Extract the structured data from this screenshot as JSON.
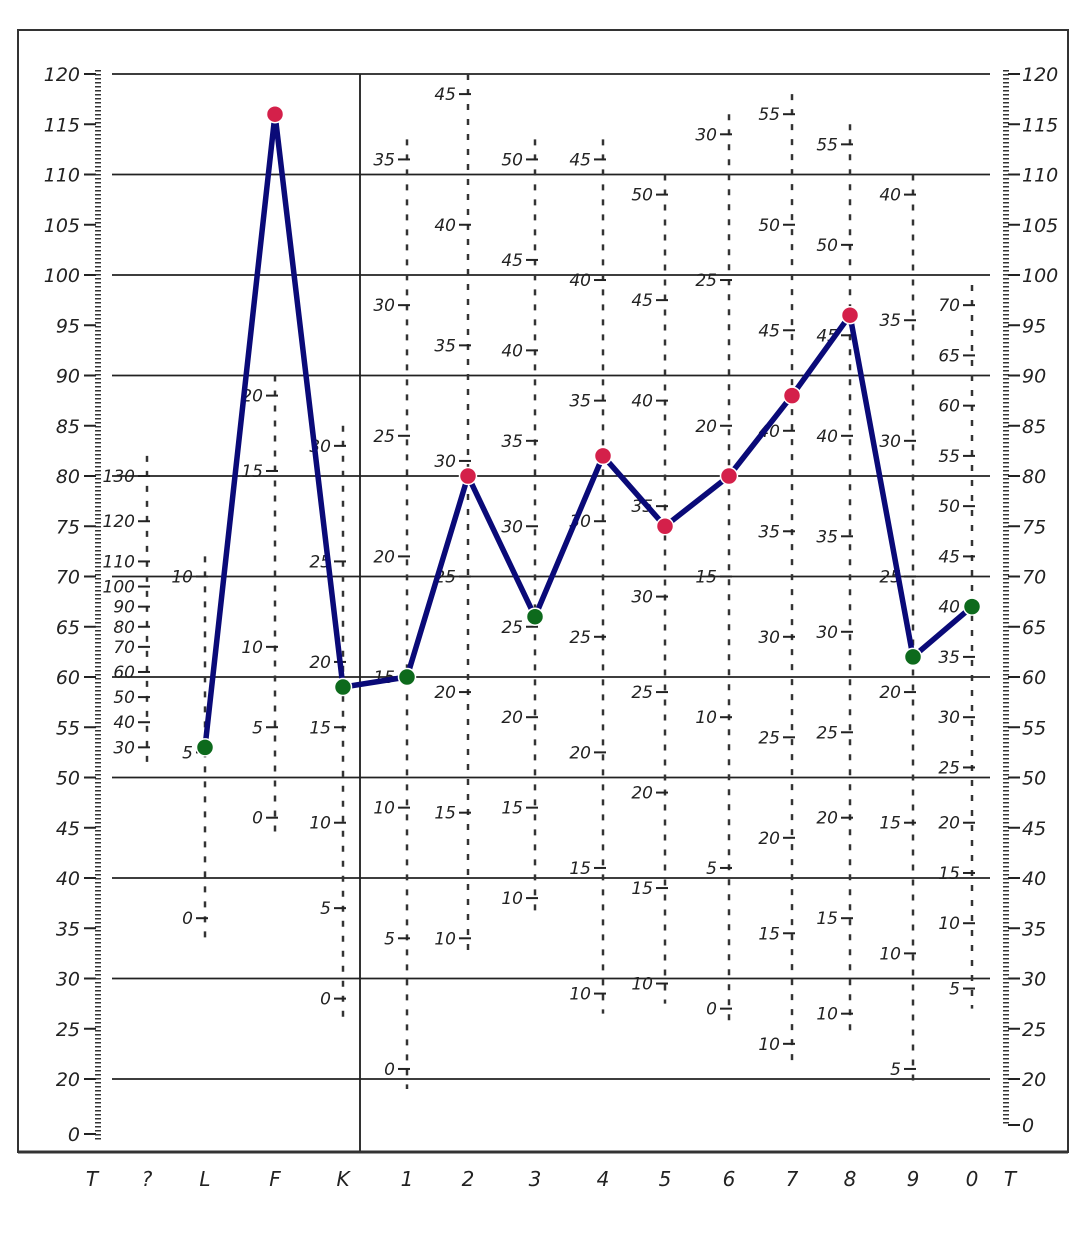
{
  "chart_data": {
    "type": "line",
    "title": "",
    "xlabel": "",
    "ylabel": "",
    "categories": [
      "T",
      "?",
      "L",
      "F",
      "K",
      "1",
      "2",
      "3",
      "4",
      "5",
      "6",
      "7",
      "8",
      "9",
      "0",
      "T"
    ],
    "y_axis": {
      "ylim": [
        0,
        120
      ],
      "left_ticks": [
        "120",
        "115",
        "110",
        "105",
        "100",
        "95",
        "90",
        "85",
        "80",
        "75",
        "70",
        "65",
        "60",
        "55",
        "50",
        "45",
        "40",
        "35",
        "30",
        "25",
        "20",
        "0"
      ],
      "right_ticks": [
        "120",
        "115",
        "110",
        "105",
        "100",
        "95",
        "90",
        "85",
        "80",
        "75",
        "70",
        "65",
        "60",
        "55",
        "50",
        "45",
        "40",
        "35",
        "30",
        "25",
        "20",
        "0"
      ]
    },
    "grid": true,
    "series": [
      {
        "color": "#0a0a78",
        "points": [
          {
            "category": "L",
            "t": 53,
            "marker": "green"
          },
          {
            "category": "F",
            "t": 116,
            "marker": "red"
          },
          {
            "category": "K",
            "t": 59,
            "marker": "green"
          },
          {
            "category": "1",
            "t": 60,
            "marker": "green"
          },
          {
            "category": "2",
            "t": 80,
            "marker": "red"
          },
          {
            "category": "3",
            "t": 66,
            "marker": "green"
          },
          {
            "category": "4",
            "t": 82,
            "marker": "red"
          },
          {
            "category": "5",
            "t": 75,
            "marker": "red"
          },
          {
            "category": "6",
            "t": 80,
            "marker": "red"
          },
          {
            "category": "7",
            "t": 88,
            "marker": "red"
          },
          {
            "category": "8",
            "t": 96,
            "marker": "red"
          },
          {
            "category": "9",
            "t": 62,
            "marker": "green"
          },
          {
            "category": "0",
            "t": 67,
            "marker": "green"
          }
        ]
      }
    ],
    "raw_scales": [
      {
        "column": "?",
        "labels": [
          {
            "text": "130",
            "t": 80
          },
          {
            "text": "120",
            "t": 75.5
          },
          {
            "text": "110",
            "t": 71.5
          },
          {
            "text": "100",
            "t": 69
          },
          {
            "text": "90",
            "t": 67
          },
          {
            "text": "80",
            "t": 65
          },
          {
            "text": "70",
            "t": 63
          },
          {
            "text": "60",
            "t": 60.5
          },
          {
            "text": "50",
            "t": 58
          },
          {
            "text": "40",
            "t": 55.5
          },
          {
            "text": "30",
            "t": 53
          }
        ]
      },
      {
        "column": "L",
        "labels": [
          {
            "text": "10",
            "t": 70
          },
          {
            "text": "5",
            "t": 52.5
          },
          {
            "text": "0",
            "t": 36
          }
        ]
      },
      {
        "column": "F",
        "labels": [
          {
            "text": "20",
            "t": 88
          },
          {
            "text": "15",
            "t": 80.5
          },
          {
            "text": "10",
            "t": 63
          },
          {
            "text": "5",
            "t": 55
          },
          {
            "text": "0",
            "t": 46
          }
        ]
      },
      {
        "column": "K",
        "labels": [
          {
            "text": "30",
            "t": 83
          },
          {
            "text": "25",
            "t": 71.5
          },
          {
            "text": "20",
            "t": 61.5
          },
          {
            "text": "15",
            "t": 55
          },
          {
            "text": "10",
            "t": 45.5
          },
          {
            "text": "5",
            "t": 37
          },
          {
            "text": "0",
            "t": 28
          }
        ]
      },
      {
        "column": "1",
        "labels": [
          {
            "text": "35",
            "t": 111.5
          },
          {
            "text": "30",
            "t": 97
          },
          {
            "text": "25",
            "t": 84
          },
          {
            "text": "20",
            "t": 72
          },
          {
            "text": "15",
            "t": 60
          },
          {
            "text": "10",
            "t": 47
          },
          {
            "text": "5",
            "t": 34
          },
          {
            "text": "0",
            "t": 21
          }
        ]
      },
      {
        "column": "2",
        "labels": [
          {
            "text": "45",
            "t": 118
          },
          {
            "text": "40",
            "t": 105
          },
          {
            "text": "35",
            "t": 93
          },
          {
            "text": "30",
            "t": 81.5
          },
          {
            "text": "25",
            "t": 70
          },
          {
            "text": "20",
            "t": 58.5
          },
          {
            "text": "15",
            "t": 46.5
          },
          {
            "text": "10",
            "t": 34
          }
        ]
      },
      {
        "column": "3",
        "labels": [
          {
            "text": "50",
            "t": 111.5
          },
          {
            "text": "45",
            "t": 101.5
          },
          {
            "text": "40",
            "t": 92.5
          },
          {
            "text": "35",
            "t": 83.5
          },
          {
            "text": "30",
            "t": 75
          },
          {
            "text": "25",
            "t": 65
          },
          {
            "text": "20",
            "t": 56
          },
          {
            "text": "15",
            "t": 47
          },
          {
            "text": "10",
            "t": 38
          }
        ]
      },
      {
        "column": "4",
        "labels": [
          {
            "text": "45",
            "t": 111.5
          },
          {
            "text": "40",
            "t": 99.5
          },
          {
            "text": "35",
            "t": 87.5
          },
          {
            "text": "30",
            "t": 75.5
          },
          {
            "text": "25",
            "t": 64
          },
          {
            "text": "20",
            "t": 52.5
          },
          {
            "text": "15",
            "t": 41
          },
          {
            "text": "10",
            "t": 28.5
          }
        ]
      },
      {
        "column": "5",
        "labels": [
          {
            "text": "50",
            "t": 108
          },
          {
            "text": "45",
            "t": 97.5
          },
          {
            "text": "40",
            "t": 87.5
          },
          {
            "text": "35",
            "t": 77
          },
          {
            "text": "30",
            "t": 68
          },
          {
            "text": "25",
            "t": 58.5
          },
          {
            "text": "20",
            "t": 48.5
          },
          {
            "text": "15",
            "t": 39
          },
          {
            "text": "10",
            "t": 29.5
          }
        ]
      },
      {
        "column": "6",
        "labels": [
          {
            "text": "30",
            "t": 114
          },
          {
            "text": "25",
            "t": 99.5
          },
          {
            "text": "20",
            "t": 85
          },
          {
            "text": "15",
            "t": 70
          },
          {
            "text": "10",
            "t": 56
          },
          {
            "text": "5",
            "t": 41
          },
          {
            "text": "0",
            "t": 27
          }
        ]
      },
      {
        "column": "7",
        "labels": [
          {
            "text": "55",
            "t": 116
          },
          {
            "text": "50",
            "t": 105
          },
          {
            "text": "45",
            "t": 94.5
          },
          {
            "text": "40",
            "t": 84.5
          },
          {
            "text": "35",
            "t": 74.5
          },
          {
            "text": "30",
            "t": 64
          },
          {
            "text": "25",
            "t": 54
          },
          {
            "text": "20",
            "t": 44
          },
          {
            "text": "15",
            "t": 34.5
          },
          {
            "text": "10",
            "t": 23.5
          }
        ]
      },
      {
        "column": "8",
        "labels": [
          {
            "text": "55",
            "t": 113
          },
          {
            "text": "50",
            "t": 103
          },
          {
            "text": "45",
            "t": 94
          },
          {
            "text": "40",
            "t": 84
          },
          {
            "text": "35",
            "t": 74
          },
          {
            "text": "30",
            "t": 64.5
          },
          {
            "text": "25",
            "t": 54.5
          },
          {
            "text": "20",
            "t": 46
          },
          {
            "text": "15",
            "t": 36
          },
          {
            "text": "10",
            "t": 26.5
          }
        ]
      },
      {
        "column": "9",
        "labels": [
          {
            "text": "40",
            "t": 108
          },
          {
            "text": "35",
            "t": 95.5
          },
          {
            "text": "30",
            "t": 83.5
          },
          {
            "text": "25",
            "t": 70
          },
          {
            "text": "20",
            "t": 58.5
          },
          {
            "text": "15",
            "t": 45.5
          },
          {
            "text": "10",
            "t": 32.5
          },
          {
            "text": "5",
            "t": 21
          }
        ]
      },
      {
        "column": "0",
        "labels": [
          {
            "text": "70",
            "t": 97
          },
          {
            "text": "65",
            "t": 92
          },
          {
            "text": "60",
            "t": 87
          },
          {
            "text": "55",
            "t": 82
          },
          {
            "text": "50",
            "t": 77
          },
          {
            "text": "45",
            "t": 72
          },
          {
            "text": "40",
            "t": 67
          },
          {
            "text": "35",
            "t": 62
          },
          {
            "text": "30",
            "t": 56
          },
          {
            "text": "25",
            "t": 51
          },
          {
            "text": "20",
            "t": 45.5
          },
          {
            "text": "15",
            "t": 40.5
          },
          {
            "text": "10",
            "t": 35.5
          },
          {
            "text": "5",
            "t": 29
          }
        ]
      }
    ],
    "colors": {
      "line": "#0a0a78",
      "high_marker": "#d4204a",
      "low_marker": "#0d6a1c",
      "grid": "#222222"
    }
  }
}
